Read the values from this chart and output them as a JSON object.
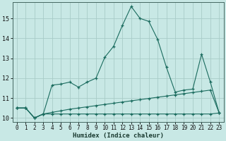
{
  "xlabel": "Humidex (Indice chaleur)",
  "background_color": "#c8e8e5",
  "grid_color": "#a8ccc8",
  "line_color": "#1a6b5e",
  "x_values": [
    0,
    1,
    2,
    3,
    4,
    5,
    6,
    7,
    8,
    9,
    10,
    11,
    12,
    13,
    14,
    15,
    16,
    17,
    18,
    19,
    20,
    21,
    22,
    23
  ],
  "line1": [
    10.5,
    10.5,
    10.0,
    10.2,
    11.65,
    11.7,
    11.8,
    11.55,
    11.8,
    12.0,
    13.05,
    13.6,
    14.65,
    15.6,
    15.0,
    14.85,
    13.95,
    12.55,
    11.3,
    11.4,
    11.45,
    13.2,
    11.8,
    10.25
  ],
  "line2": [
    10.5,
    10.5,
    10.0,
    10.2,
    10.28,
    10.36,
    10.44,
    10.5,
    10.56,
    10.62,
    10.68,
    10.74,
    10.8,
    10.86,
    10.92,
    10.98,
    11.04,
    11.1,
    11.16,
    11.22,
    11.28,
    11.34,
    11.4,
    10.25
  ],
  "line3": [
    10.5,
    10.5,
    10.0,
    10.2,
    10.2,
    10.2,
    10.2,
    10.2,
    10.2,
    10.2,
    10.2,
    10.2,
    10.2,
    10.2,
    10.2,
    10.2,
    10.2,
    10.2,
    10.2,
    10.2,
    10.2,
    10.2,
    10.2,
    10.25
  ],
  "ylim": [
    9.8,
    15.8
  ],
  "yticks": [
    10,
    11,
    12,
    13,
    14,
    15
  ],
  "xticks": [
    0,
    1,
    2,
    3,
    4,
    5,
    6,
    7,
    8,
    9,
    10,
    11,
    12,
    13,
    14,
    15,
    16,
    17,
    18,
    19,
    20,
    21,
    22,
    23
  ],
  "xlabel_fontsize": 6.5,
  "tick_fontsize": 5.5
}
